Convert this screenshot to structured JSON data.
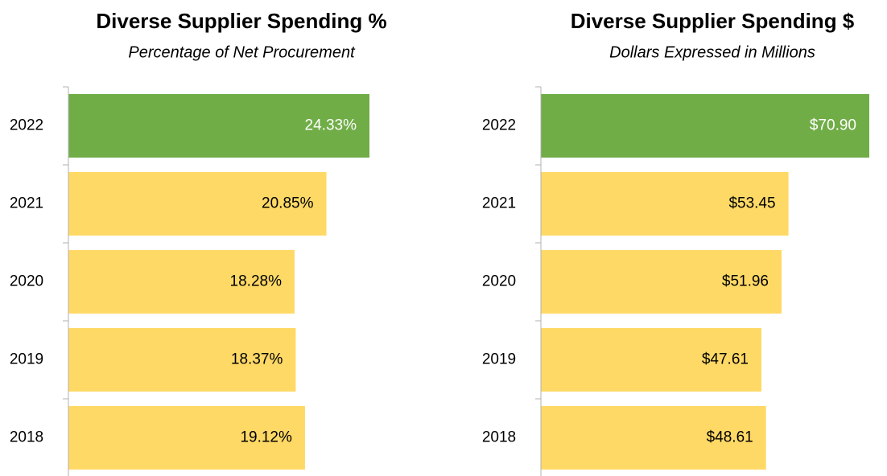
{
  "chart_data": [
    {
      "type": "hbar",
      "title": "Diverse Supplier Spending %",
      "subtitle": "Percentage of Net Procurement",
      "categories": [
        "2022",
        "2021",
        "2020",
        "2019",
        "2018"
      ],
      "values": [
        24.33,
        20.85,
        18.28,
        18.37,
        19.12
      ],
      "value_labels": [
        "24.33%",
        "20.85%",
        "18.28%",
        "18.37%",
        "19.12%"
      ],
      "colors": [
        "#70ad47",
        "#ffd966",
        "#ffd966",
        "#ffd966",
        "#ffd966"
      ],
      "label_colors": [
        "#ffffff",
        "#000000",
        "#000000",
        "#000000",
        "#000000"
      ]
    },
    {
      "type": "hbar",
      "title": "Diverse Supplier Spending $",
      "subtitle": "Dollars Expressed in Millions",
      "categories": [
        "2022",
        "2021",
        "2020",
        "2019",
        "2018"
      ],
      "values": [
        70.9,
        53.45,
        51.96,
        47.61,
        48.61
      ],
      "value_labels": [
        "$70.90",
        "$53.45",
        "$51.96",
        "$47.61",
        "$48.61"
      ],
      "colors": [
        "#70ad47",
        "#ffd966",
        "#ffd966",
        "#ffd966",
        "#ffd966"
      ],
      "label_colors": [
        "#ffffff",
        "#000000",
        "#000000",
        "#000000",
        "#000000"
      ]
    }
  ]
}
